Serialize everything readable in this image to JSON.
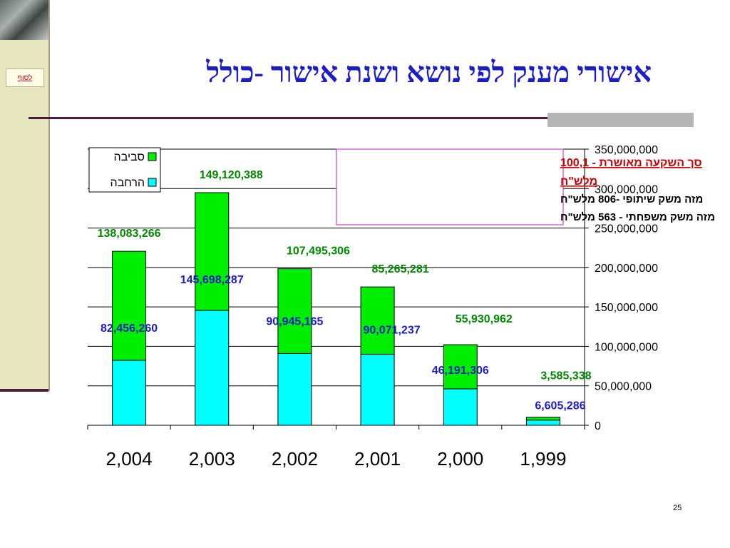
{
  "slide": {
    "title": "אישורי מענק לפי נושא ושנת אישור -כולל",
    "nav_button": "לסוף",
    "page_number": "25"
  },
  "info_box": {
    "line1": "סך השקעה מאושרת - 100,1",
    "line2": "מלש\"ח",
    "line3": "מזה משק  שיתופי -806 מלש\"ח",
    "line4": "מזה  משק  משפחתי - 563 מלש\"ח"
  },
  "colors": {
    "sviva": "#00ee00",
    "harhava": "#00ffff",
    "title": "#1c1cc8",
    "sviva_label": "#008800",
    "harhava_label": "#1c1cc8"
  },
  "chart_data": {
    "type": "bar",
    "stacked": true,
    "categories": [
      "2,004",
      "2,003",
      "2,002",
      "2,001",
      "2,000",
      "1,999"
    ],
    "series": [
      {
        "name": "הרחבה",
        "values": [
          82456260,
          145698287,
          90945165,
          90071237,
          46191306,
          6605286
        ]
      },
      {
        "name": "סביבה",
        "values": [
          138083266,
          149120388,
          107495306,
          85265281,
          55930962,
          3585338
        ]
      }
    ],
    "value_labels": {
      "הרחבה": [
        "82,456,260",
        "145,698,287",
        "90,945,165",
        "90,071,237",
        "46,191,306",
        "6,605,286"
      ],
      "סביבה": [
        "138,083,266",
        "149,120,388",
        "107,495,306",
        "85,265,281",
        "55,930,962",
        "3,585,338"
      ]
    },
    "y_ticks": [
      "0",
      "50,000,000",
      "100,000,000",
      "150,000,000",
      "200,000,000",
      "250,000,000",
      "300,000,000",
      "350,000,000"
    ],
    "ylim": [
      0,
      350000000
    ],
    "y_axis_position": "right",
    "grid": true,
    "legend_position": "top-left"
  }
}
